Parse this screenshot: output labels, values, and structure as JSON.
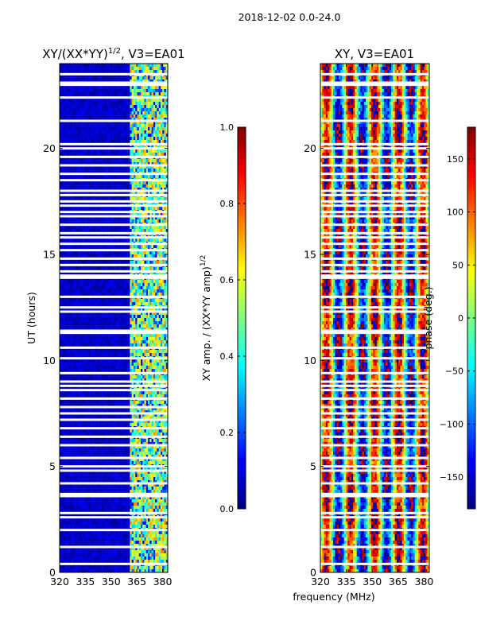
{
  "suptitle": "2018-12-02 0.0-24.0",
  "colors": {
    "jet": [
      "#00007f",
      "#0000ff",
      "#007fff",
      "#00ffff",
      "#7fff7f",
      "#ffff00",
      "#ff7f00",
      "#ff0000",
      "#7f0000"
    ],
    "gap": "#ffffff",
    "axis": "#000000"
  },
  "chart_data": [
    {
      "type": "heatmap",
      "title": "XY/(XX*YY)",
      "title_sup": "1/2",
      "title_tail": ", V3=EA01",
      "xlabel": "",
      "ylabel": "UT (hours)",
      "xlim": [
        320,
        383
      ],
      "ylim": [
        0,
        24
      ],
      "xticks": [
        "320",
        "335",
        "350",
        "365",
        "380"
      ],
      "yticks": [
        "0",
        "5",
        "10",
        "15",
        "20"
      ],
      "quantity": "normalized XY amplitude",
      "value_range": [
        0.0,
        1.0
      ],
      "band_high_amplitude_MHz": [
        361,
        383
      ],
      "colorbar": {
        "label": "XY amp. / (XX*YY amp)",
        "label_sup": "1/2",
        "range": [
          0.0,
          1.0
        ],
        "ticks": [
          "0.0",
          "0.2",
          "0.4",
          "0.6",
          "0.8",
          "1.0"
        ]
      }
    },
    {
      "type": "heatmap",
      "title": "XY, V3=EA01",
      "xlabel": "frequency (MHz)",
      "ylabel": "",
      "xlim": [
        320,
        383
      ],
      "ylim": [
        0,
        24
      ],
      "xticks": [
        "320",
        "335",
        "350",
        "365",
        "380"
      ],
      "yticks": [
        "0",
        "5",
        "10",
        "15",
        "20"
      ],
      "quantity": "XY phase",
      "value_range": [
        -180,
        180
      ],
      "colorbar": {
        "label": "phase (deg.)",
        "range": [
          -180,
          180
        ],
        "ticks": [
          "-150",
          "-100",
          "-50",
          "0",
          "50",
          "100",
          "150"
        ]
      }
    }
  ],
  "flagged_gaps_hours": [
    0.4,
    1.2,
    2.0,
    2.6,
    2.8,
    3.6,
    3.7,
    4.2,
    4.8,
    5.0,
    5.4,
    6.0,
    6.4,
    6.8,
    7.2,
    7.5,
    7.8,
    8.2,
    8.6,
    8.8,
    9.0,
    9.4,
    10.1,
    10.6,
    11.3,
    11.4,
    12.3,
    12.5,
    13.0,
    13.9,
    14.0,
    14.2,
    14.5,
    14.8,
    15.2,
    15.5,
    15.8,
    16.0,
    16.4,
    16.8,
    17.0,
    17.3,
    17.5,
    17.8,
    18.0,
    18.5,
    18.8,
    19.2,
    19.6,
    20.0,
    20.2,
    21.3,
    22.4,
    23.0,
    23.1,
    23.5
  ]
}
